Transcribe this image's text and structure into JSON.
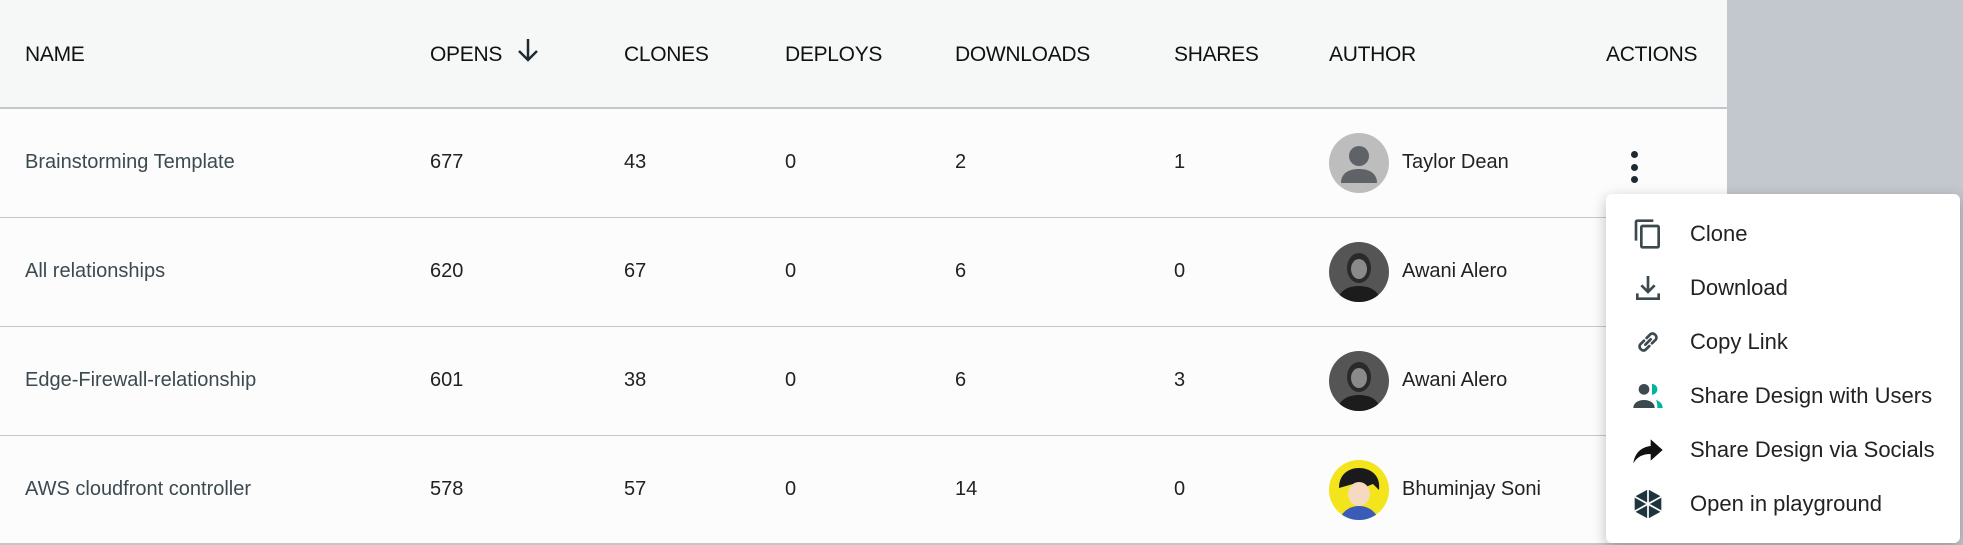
{
  "columns": [
    "NAME",
    "OPENS",
    "CLONES",
    "DEPLOYS",
    "DOWNLOADS",
    "SHARES",
    "AUTHOR",
    "ACTIONS"
  ],
  "sort": {
    "column": "OPENS",
    "direction": "descending",
    "icon": "arrow-down-icon"
  },
  "rows": [
    {
      "name": "Brainstorming Template",
      "opens": "677",
      "clones": "43",
      "deploys": "0",
      "downloads": "2",
      "shares": "1",
      "author": "Taylor Dean"
    },
    {
      "name": "All relationships",
      "opens": "620",
      "clones": "67",
      "deploys": "0",
      "downloads": "6",
      "shares": "0",
      "author": "Awani Alero"
    },
    {
      "name": "Edge-Firewall-relationship",
      "opens": "601",
      "clones": "38",
      "deploys": "0",
      "downloads": "6",
      "shares": "3",
      "author": "Awani Alero"
    },
    {
      "name": "AWS cloudfront controller",
      "opens": "578",
      "clones": "57",
      "deploys": "0",
      "downloads": "14",
      "shares": "0",
      "author": "Bhuminjay Soni"
    }
  ],
  "menu": [
    {
      "label": "Clone",
      "icon": "copy-icon"
    },
    {
      "label": "Download",
      "icon": "download-icon"
    },
    {
      "label": "Copy Link",
      "icon": "link-icon"
    },
    {
      "label": "Share Design with Users",
      "icon": "users-icon"
    },
    {
      "label": "Share Design via Socials",
      "icon": "share-arrow-icon"
    },
    {
      "label": "Open in playground",
      "icon": "playground-icon"
    }
  ],
  "colors": {
    "header_bg": "#f6f7f7",
    "accent": "#00b39f",
    "backdrop": "#c3c8ce"
  }
}
